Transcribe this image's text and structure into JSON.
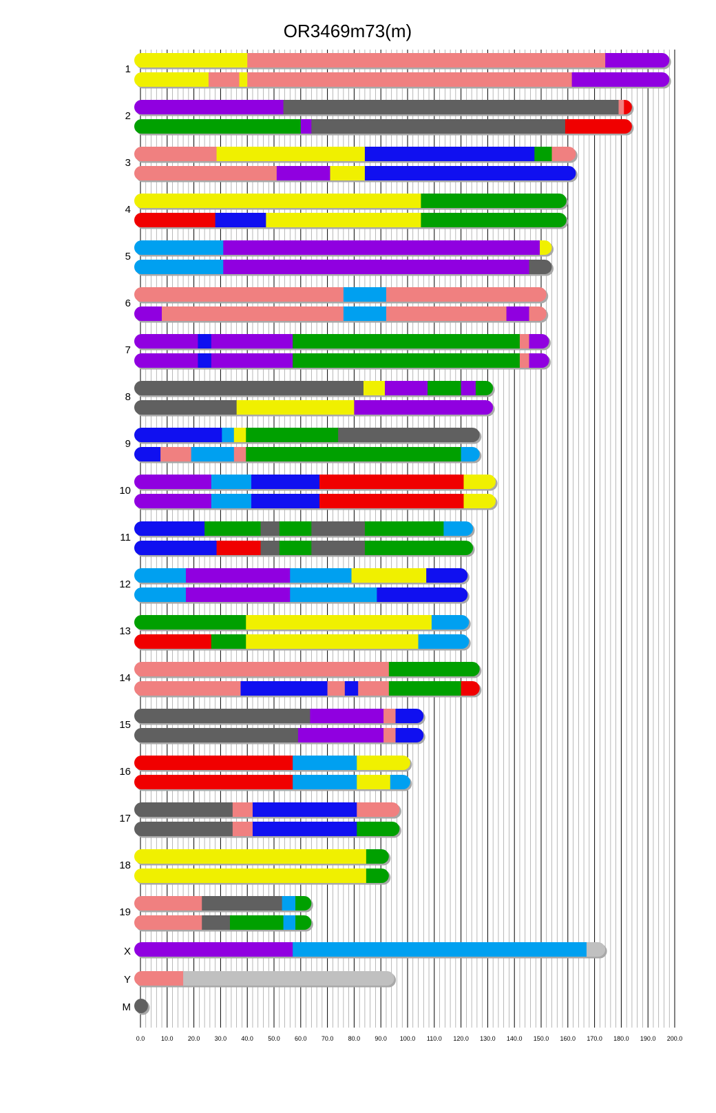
{
  "chart_data": {
    "type": "chromosome-painting",
    "title": "OR3469m73(m)",
    "xlabel": "",
    "ylabel": "",
    "xlim": [
      0,
      200
    ],
    "x_ticks": [
      "0.0",
      "10.0",
      "20.0",
      "30.0",
      "40.0",
      "50.0",
      "60.0",
      "70.0",
      "80.0",
      "90.0",
      "100.0",
      "110.0",
      "120.0",
      "130.0",
      "140.0",
      "150.0",
      "160.0",
      "170.0",
      "180.0",
      "190.0",
      "200.0"
    ],
    "grid": true,
    "colors": {
      "Y": "#f0f000",
      "S": "#f08080",
      "P": "#9000e0",
      "G": "#606060",
      "R": "#f00000",
      "N": "#00a000",
      "B": "#1010f0",
      "L": "#00a0f0",
      "W": "#c0c0c0"
    },
    "chromosomes": [
      {
        "label": "1",
        "haplotypes": [
          [
            [
              "Y",
              0,
              40
            ],
            [
              "S",
              40,
              174
            ],
            [
              "P",
              174,
              198
            ]
          ],
          [
            [
              "Y",
              0,
              25.5
            ],
            [
              "S",
              25.5,
              37
            ],
            [
              "Y",
              37,
              40
            ],
            [
              "S",
              40,
              161.5
            ],
            [
              "P",
              161.5,
              198
            ]
          ]
        ]
      },
      {
        "label": "2",
        "haplotypes": [
          [
            [
              "P",
              0,
              53.5
            ],
            [
              "G",
              53.5,
              179
            ],
            [
              "S",
              179,
              181
            ],
            [
              "R",
              181,
              184
            ]
          ],
          [
            [
              "N",
              0,
              60
            ],
            [
              "P",
              60,
              64
            ],
            [
              "G",
              64,
              159
            ],
            [
              "R",
              159,
              184
            ]
          ]
        ]
      },
      {
        "label": "3",
        "haplotypes": [
          [
            [
              "S",
              0,
              28.5
            ],
            [
              "Y",
              28.5,
              84
            ],
            [
              "B",
              84,
              147.5
            ],
            [
              "N",
              147.5,
              154
            ],
            [
              "S",
              154,
              163
            ]
          ],
          [
            [
              "S",
              0,
              51
            ],
            [
              "P",
              51,
              71
            ],
            [
              "Y",
              71,
              84
            ],
            [
              "B",
              84,
              163
            ]
          ]
        ]
      },
      {
        "label": "4",
        "haplotypes": [
          [
            [
              "Y",
              0,
              105
            ],
            [
              "N",
              105,
              159.5
            ]
          ],
          [
            [
              "R",
              0,
              28
            ],
            [
              "B",
              28,
              47
            ],
            [
              "Y",
              47,
              105
            ],
            [
              "N",
              105,
              159.5
            ]
          ]
        ]
      },
      {
        "label": "5",
        "haplotypes": [
          [
            [
              "L",
              0,
              31
            ],
            [
              "P",
              31,
              149.5
            ],
            [
              "Y",
              149.5,
              154
            ]
          ],
          [
            [
              "L",
              0,
              31
            ],
            [
              "P",
              31,
              145.5
            ],
            [
              "G",
              145.5,
              154
            ]
          ]
        ]
      },
      {
        "label": "6",
        "haplotypes": [
          [
            [
              "S",
              0,
              76
            ],
            [
              "L",
              76,
              92
            ],
            [
              "S",
              92,
              152
            ]
          ],
          [
            [
              "P",
              0,
              8
            ],
            [
              "S",
              8,
              76
            ],
            [
              "L",
              76,
              92
            ],
            [
              "S",
              92,
              137
            ],
            [
              "P",
              137,
              145.5
            ],
            [
              "S",
              145.5,
              152
            ]
          ]
        ]
      },
      {
        "label": "7",
        "haplotypes": [
          [
            [
              "P",
              0,
              21.5
            ],
            [
              "B",
              21.5,
              26.5
            ],
            [
              "P",
              26.5,
              57
            ],
            [
              "N",
              57,
              142
            ],
            [
              "S",
              142,
              145.5
            ],
            [
              "P",
              145.5,
              153
            ]
          ],
          [
            [
              "P",
              0,
              21.5
            ],
            [
              "B",
              21.5,
              26.5
            ],
            [
              "P",
              26.5,
              57
            ],
            [
              "N",
              57,
              142
            ],
            [
              "S",
              142,
              145.5
            ],
            [
              "P",
              145.5,
              153
            ]
          ]
        ]
      },
      {
        "label": "8",
        "haplotypes": [
          [
            [
              "G",
              0,
              83.5
            ],
            [
              "Y",
              83.5,
              91.5
            ],
            [
              "P",
              91.5,
              107.5
            ],
            [
              "N",
              107.5,
              120
            ],
            [
              "P",
              120,
              125.5
            ],
            [
              "N",
              125.5,
              132
            ]
          ],
          [
            [
              "G",
              0,
              36
            ],
            [
              "Y",
              36,
              80
            ],
            [
              "P",
              80,
              132
            ]
          ]
        ]
      },
      {
        "label": "9",
        "haplotypes": [
          [
            [
              "B",
              0,
              30.5
            ],
            [
              "L",
              30.5,
              35
            ],
            [
              "Y",
              35,
              39.5
            ],
            [
              "N",
              39.5,
              74
            ],
            [
              "G",
              74,
              127
            ]
          ],
          [
            [
              "B",
              0,
              7.5
            ],
            [
              "S",
              7.5,
              19
            ],
            [
              "L",
              19,
              35
            ],
            [
              "S",
              35,
              39.5
            ],
            [
              "N",
              39.5,
              120
            ],
            [
              "L",
              120,
              127
            ]
          ]
        ]
      },
      {
        "label": "10",
        "haplotypes": [
          [
            [
              "P",
              0,
              26.5
            ],
            [
              "L",
              26.5,
              41.5
            ],
            [
              "B",
              41.5,
              67
            ],
            [
              "R",
              67,
              121
            ],
            [
              "Y",
              121,
              133
            ]
          ],
          [
            [
              "P",
              0,
              26.5
            ],
            [
              "L",
              26.5,
              41.5
            ],
            [
              "B",
              41.5,
              67
            ],
            [
              "R",
              67,
              121
            ],
            [
              "Y",
              121,
              133
            ]
          ]
        ]
      },
      {
        "label": "11",
        "haplotypes": [
          [
            [
              "B",
              0,
              24
            ],
            [
              "N",
              24,
              45
            ],
            [
              "G",
              45,
              52
            ],
            [
              "N",
              52,
              64
            ],
            [
              "G",
              64,
              84
            ],
            [
              "N",
              84,
              113.5
            ],
            [
              "L",
              113.5,
              124.5
            ]
          ],
          [
            [
              "B",
              0,
              28.5
            ],
            [
              "R",
              28.5,
              45
            ],
            [
              "G",
              45,
              52
            ],
            [
              "N",
              52,
              64
            ],
            [
              "G",
              64,
              84
            ],
            [
              "N",
              84,
              124.5
            ]
          ]
        ]
      },
      {
        "label": "12",
        "haplotypes": [
          [
            [
              "L",
              0,
              17
            ],
            [
              "P",
              17,
              56
            ],
            [
              "L",
              56,
              79
            ],
            [
              "Y",
              79,
              107
            ],
            [
              "B",
              107,
              122.5
            ]
          ],
          [
            [
              "L",
              0,
              17
            ],
            [
              "P",
              17,
              56
            ],
            [
              "L",
              56,
              88.5
            ],
            [
              "B",
              88.5,
              122.5
            ]
          ]
        ]
      },
      {
        "label": "13",
        "haplotypes": [
          [
            [
              "N",
              0,
              39.5
            ],
            [
              "Y",
              39.5,
              109
            ],
            [
              "L",
              109,
              123
            ]
          ],
          [
            [
              "R",
              0,
              26.5
            ],
            [
              "N",
              26.5,
              39.5
            ],
            [
              "Y",
              39.5,
              104
            ],
            [
              "L",
              104,
              123
            ]
          ]
        ]
      },
      {
        "label": "14",
        "haplotypes": [
          [
            [
              "S",
              0,
              93
            ],
            [
              "N",
              93,
              127
            ]
          ],
          [
            [
              "S",
              0,
              37.5
            ],
            [
              "B",
              37.5,
              70
            ],
            [
              "S",
              70,
              76.5
            ],
            [
              "B",
              76.5,
              81.5
            ],
            [
              "S",
              81.5,
              93
            ],
            [
              "N",
              93,
              120
            ],
            [
              "R",
              120,
              127
            ]
          ]
        ]
      },
      {
        "label": "15",
        "haplotypes": [
          [
            [
              "G",
              0,
              63.5
            ],
            [
              "P",
              63.5,
              91
            ],
            [
              "S",
              91,
              95.5
            ],
            [
              "B",
              95.5,
              106
            ]
          ],
          [
            [
              "G",
              0,
              59
            ],
            [
              "P",
              59,
              91
            ],
            [
              "S",
              91,
              95.5
            ],
            [
              "B",
              95.5,
              106
            ]
          ]
        ]
      },
      {
        "label": "16",
        "haplotypes": [
          [
            [
              "R",
              0,
              57
            ],
            [
              "L",
              57,
              81
            ],
            [
              "Y",
              81,
              101
            ]
          ],
          [
            [
              "R",
              0,
              57
            ],
            [
              "L",
              57,
              81
            ],
            [
              "Y",
              81,
              93.5
            ],
            [
              "L",
              93.5,
              101
            ]
          ]
        ]
      },
      {
        "label": "17",
        "haplotypes": [
          [
            [
              "G",
              0,
              34.5
            ],
            [
              "S",
              34.5,
              42
            ],
            [
              "B",
              42,
              81
            ],
            [
              "S",
              81,
              97
            ]
          ],
          [
            [
              "G",
              0,
              34.5
            ],
            [
              "S",
              34.5,
              42
            ],
            [
              "B",
              42,
              81
            ],
            [
              "N",
              81,
              97
            ]
          ]
        ]
      },
      {
        "label": "18",
        "haplotypes": [
          [
            [
              "Y",
              0,
              84.5
            ],
            [
              "N",
              84.5,
              93
            ]
          ],
          [
            [
              "Y",
              0,
              84.5
            ],
            [
              "N",
              84.5,
              93
            ]
          ]
        ]
      },
      {
        "label": "19",
        "haplotypes": [
          [
            [
              "S",
              0,
              23
            ],
            [
              "G",
              23,
              53
            ],
            [
              "L",
              53,
              58
            ],
            [
              "N",
              58,
              64
            ]
          ],
          [
            [
              "S",
              0,
              23
            ],
            [
              "G",
              23,
              33.5
            ],
            [
              "N",
              33.5,
              53.5
            ],
            [
              "L",
              53.5,
              58
            ],
            [
              "N",
              58,
              64
            ]
          ]
        ]
      },
      {
        "label": "X",
        "haplotypes": [
          [
            [
              "P",
              0,
              57
            ],
            [
              "L",
              57,
              167
            ],
            [
              "W",
              167,
              174
            ]
          ]
        ]
      },
      {
        "label": "Y",
        "haplotypes": [
          [
            [
              "S",
              0,
              16
            ],
            [
              "W",
              16,
              95
            ]
          ]
        ]
      },
      {
        "label": "M",
        "haplotypes": [
          [
            [
              "G",
              0,
              0.1
            ]
          ]
        ]
      }
    ]
  }
}
